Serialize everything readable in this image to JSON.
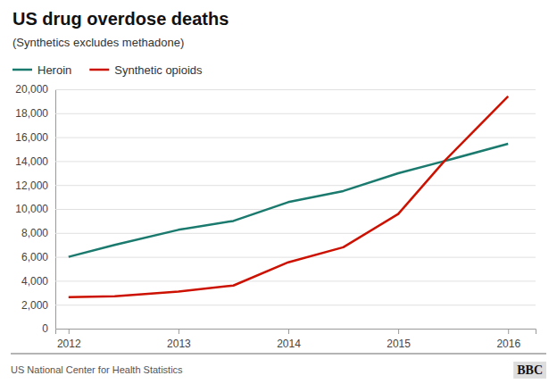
{
  "chart_data": {
    "type": "line",
    "title": "US drug overdose deaths",
    "subtitle": "(Synthetics excludes methadone)",
    "annotations": [
      "US National Center for Health Statistics",
      "BBC"
    ],
    "x": [
      2012,
      2012.42,
      2013,
      2013.5,
      2014,
      2014.5,
      2015,
      2015.42,
      2016
    ],
    "series": [
      {
        "name": "Heroin",
        "color": "#1a7a6e",
        "values": [
          6000,
          7000,
          8257,
          9000,
          10574,
          11500,
          12989,
          14000,
          15446
        ]
      },
      {
        "name": "Synthetic opioids",
        "color": "#cc1100",
        "values": [
          2628,
          2700,
          3105,
          3600,
          5544,
          6800,
          9580,
          14000,
          19413
        ]
      }
    ],
    "xlim": [
      2011.88,
      2016.25
    ],
    "xticks": [
      2012,
      2013,
      2014,
      2015,
      2016
    ],
    "ylim": [
      0,
      20000
    ],
    "yticks": [
      0,
      {
        "value": 2000,
        "label": "2,000"
      },
      {
        "value": 4000,
        "label": "4,000"
      },
      {
        "value": 6000,
        "label": "6,000"
      },
      {
        "value": 8000,
        "label": "8,000"
      },
      {
        "value": 10000,
        "label": "10,000"
      },
      {
        "value": 12000,
        "label": "12,000"
      },
      {
        "value": 14000,
        "label": "14,000"
      },
      {
        "value": 16000,
        "label": "16,000"
      },
      {
        "value": 18000,
        "label": "18,000"
      },
      {
        "value": 20000,
        "label": "20,000"
      }
    ],
    "grid": true,
    "legend": "top-left"
  }
}
